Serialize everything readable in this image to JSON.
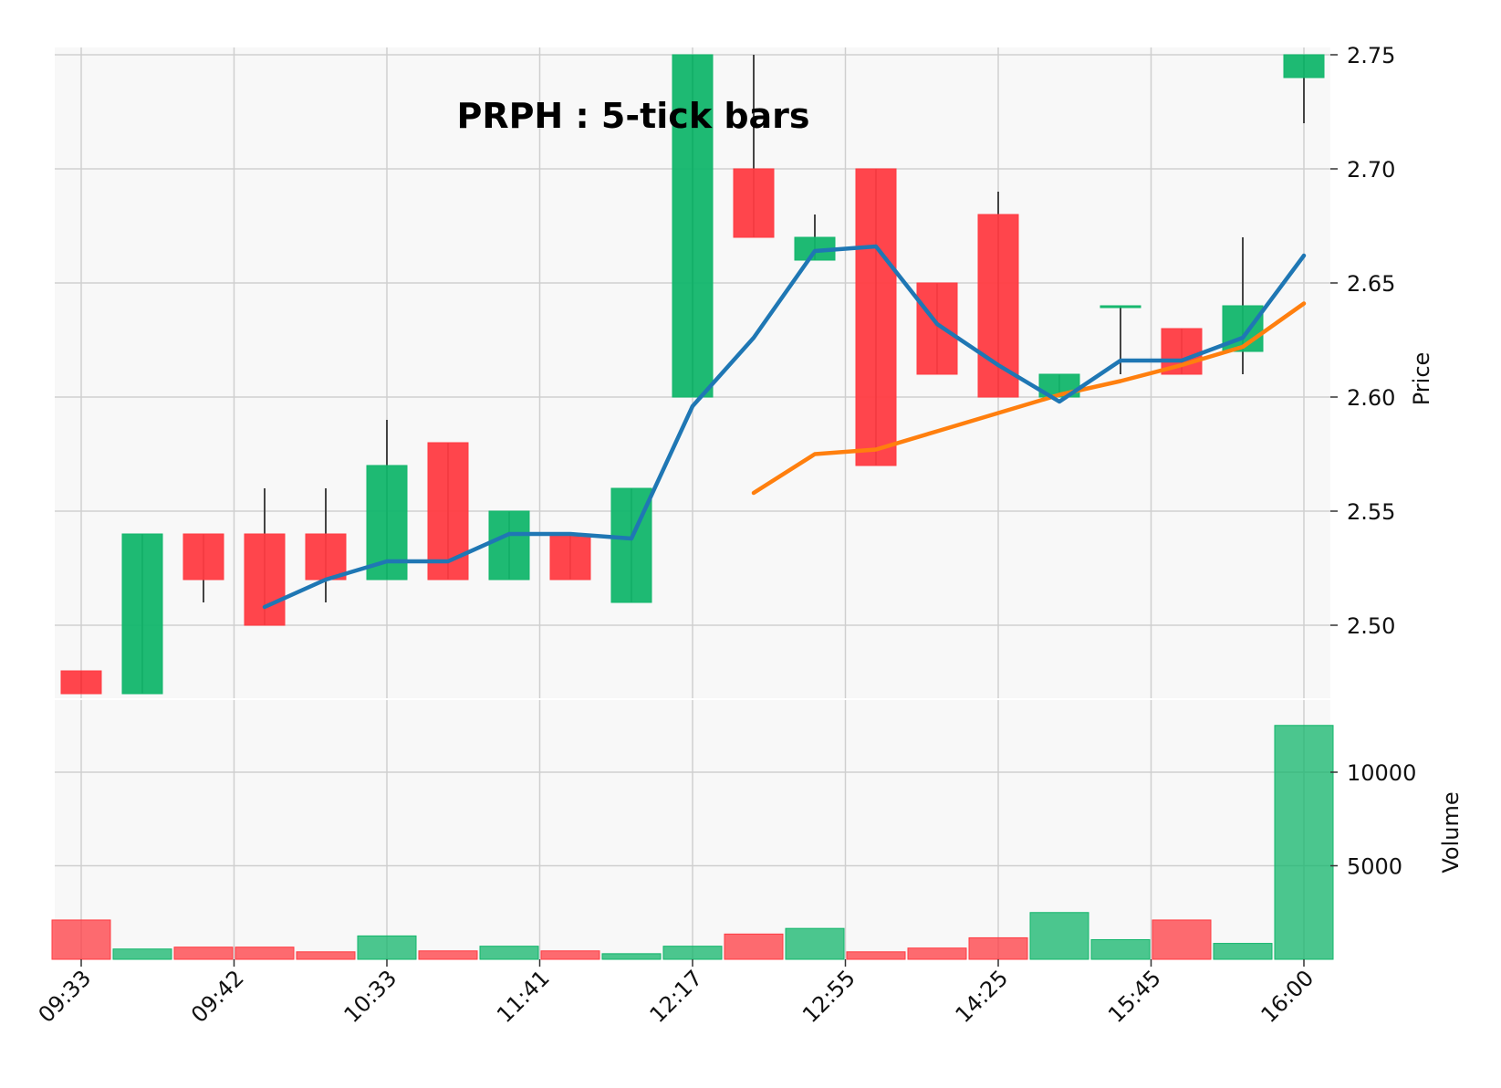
{
  "chart_data": {
    "type": "candlestick",
    "title": "PRPH : 5-tick bars",
    "x_tick_labels": [
      "09:33",
      "09:42",
      "10:33",
      "11:41",
      "12:17",
      "12:55",
      "14:25",
      "15:45",
      "16:00"
    ],
    "x_tick_bar_index": [
      0,
      2.5,
      5,
      7.5,
      10,
      12.5,
      15,
      17.5,
      20
    ],
    "price_axis": {
      "label": "Price",
      "ticks": [
        "2.50",
        "2.55",
        "2.60",
        "2.65",
        "2.70",
        "2.75"
      ],
      "range": [
        2.46,
        2.75
      ]
    },
    "volume_axis": {
      "label": "Volume",
      "ticks": [
        "5000",
        "10000"
      ],
      "range": [
        0,
        13000
      ]
    },
    "grid": true,
    "colors": {
      "up": "#12b66b",
      "down": "#ff3b42",
      "ma_fast": "#1f77b4",
      "ma_slow": "#ff7f0e",
      "wick": "#444444",
      "panel_bg": "#f8f8f8",
      "grid": "#cfcfcf"
    },
    "candles": [
      {
        "open": 2.48,
        "high": 2.48,
        "low": 2.47,
        "close": 2.47
      },
      {
        "open": 2.47,
        "high": 2.54,
        "low": 2.47,
        "close": 2.54
      },
      {
        "open": 2.54,
        "high": 2.54,
        "low": 2.51,
        "close": 2.52
      },
      {
        "open": 2.54,
        "high": 2.56,
        "low": 2.5,
        "close": 2.5
      },
      {
        "open": 2.54,
        "high": 2.56,
        "low": 2.51,
        "close": 2.52
      },
      {
        "open": 2.52,
        "high": 2.59,
        "low": 2.52,
        "close": 2.57
      },
      {
        "open": 2.58,
        "high": 2.58,
        "low": 2.52,
        "close": 2.52
      },
      {
        "open": 2.52,
        "high": 2.55,
        "low": 2.52,
        "close": 2.55
      },
      {
        "open": 2.54,
        "high": 2.54,
        "low": 2.52,
        "close": 2.52
      },
      {
        "open": 2.51,
        "high": 2.56,
        "low": 2.51,
        "close": 2.56
      },
      {
        "open": 2.6,
        "high": 2.75,
        "low": 2.6,
        "close": 2.75
      },
      {
        "open": 2.7,
        "high": 2.75,
        "low": 2.67,
        "close": 2.67
      },
      {
        "open": 2.66,
        "high": 2.68,
        "low": 2.66,
        "close": 2.67
      },
      {
        "open": 2.7,
        "high": 2.7,
        "low": 2.57,
        "close": 2.57
      },
      {
        "open": 2.65,
        "high": 2.65,
        "low": 2.61,
        "close": 2.61
      },
      {
        "open": 2.68,
        "high": 2.69,
        "low": 2.6,
        "close": 2.6
      },
      {
        "open": 2.6,
        "high": 2.61,
        "low": 2.6,
        "close": 2.61
      },
      {
        "open": 2.64,
        "high": 2.64,
        "low": 2.61,
        "close": 2.64
      },
      {
        "open": 2.63,
        "high": 2.63,
        "low": 2.61,
        "close": 2.61
      },
      {
        "open": 2.62,
        "high": 2.67,
        "low": 2.61,
        "close": 2.64
      },
      {
        "open": 2.74,
        "high": 2.75,
        "low": 2.72,
        "close": 2.75
      }
    ],
    "volume": [
      2100,
      550,
      650,
      650,
      400,
      1250,
      450,
      700,
      450,
      300,
      700,
      1350,
      1650,
      400,
      600,
      1150,
      2500,
      1050,
      2100,
      850,
      12500
    ],
    "ma_fast": [
      null,
      null,
      null,
      2.508,
      2.52,
      2.528,
      2.528,
      2.54,
      2.54,
      2.538,
      2.596,
      2.626,
      2.664,
      2.666,
      2.632,
      2.614,
      2.598,
      2.616,
      2.616,
      2.626,
      2.662
    ],
    "ma_slow": [
      null,
      null,
      null,
      null,
      null,
      null,
      null,
      null,
      null,
      null,
      null,
      2.558,
      2.575,
      2.577,
      2.585,
      2.593,
      2.601,
      2.607,
      2.614,
      2.622,
      2.641
    ]
  }
}
